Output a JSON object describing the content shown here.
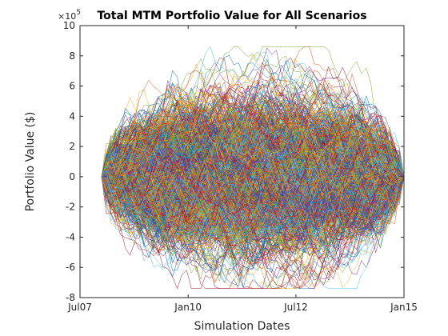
{
  "chart_data": {
    "type": "line",
    "title": "Total MTM Portfolio Value for All Scenarios",
    "xlabel": "Simulation Dates",
    "ylabel": "Portfolio Value ($)",
    "x_axis": {
      "kind": "date",
      "range": [
        "2007-07-01",
        "2015-01-01"
      ],
      "ticks": [
        {
          "date": "2007-07-01",
          "label": "Jul07"
        },
        {
          "date": "2010-01-01",
          "label": "Jan10"
        },
        {
          "date": "2012-07-01",
          "label": "Jul12"
        },
        {
          "date": "2015-01-01",
          "label": "Jan15"
        }
      ]
    },
    "y_axis": {
      "range": [
        -800000,
        1000000
      ],
      "ticks": [
        -800000,
        -600000,
        -400000,
        -200000,
        0,
        200000,
        400000,
        600000,
        800000,
        1000000
      ],
      "tick_labels": [
        "-8",
        "-6",
        "-4",
        "-2",
        "0",
        "2",
        "4",
        "6",
        "8",
        "10"
      ],
      "exponent_label": {
        "base": "×10",
        "power": "5"
      }
    },
    "grid": false,
    "legend": "none",
    "series_count": 1000,
    "simulation": {
      "start_date": "2007-12-31",
      "end_date": "2015-01-01",
      "start_value": 0,
      "end_value": 0,
      "observed_max": 860000,
      "observed_min": -740000,
      "mid_horizon_band": [
        -500000,
        500000
      ]
    },
    "colors": [
      "#0072BD",
      "#D95319",
      "#EDB120",
      "#7E2F8E",
      "#77AC30",
      "#4DBEEE",
      "#A2142F"
    ],
    "axis_color": "#262626"
  }
}
